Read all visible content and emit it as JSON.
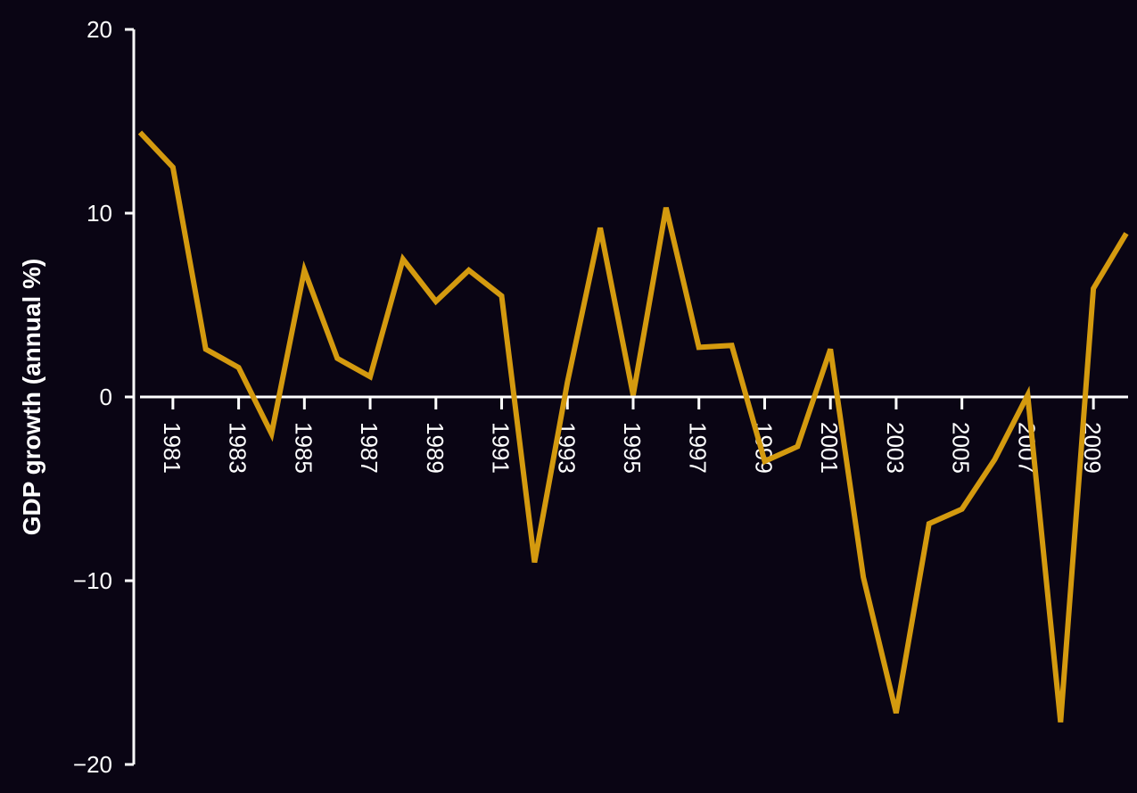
{
  "colors": {
    "background": "#0a0514",
    "axis": "#ffffff",
    "line": "#d49a0f",
    "text": "#ffffff"
  },
  "chart_data": {
    "type": "line",
    "title": "",
    "xlabel": "",
    "ylabel": "GDP growth (annual %)",
    "ylim": [
      -20,
      20
    ],
    "xlim": [
      1980,
      2010
    ],
    "yticks": [
      -20,
      -10,
      0,
      10,
      20
    ],
    "ytick_labels": [
      "−20",
      "−10",
      "0",
      "10",
      "20"
    ],
    "xticks": [
      1981,
      1983,
      1985,
      1987,
      1989,
      1991,
      1993,
      1995,
      1997,
      1999,
      2001,
      2003,
      2005,
      2007,
      2009
    ],
    "xtick_labels": [
      "1981",
      "1983",
      "1985",
      "1987",
      "1989",
      "1991",
      "1993",
      "1995",
      "1997",
      "1999",
      "2001",
      "2003",
      "2005",
      "2007",
      "2009"
    ],
    "x_axis_at_y": 0,
    "grid": false,
    "legend": "none",
    "series": [
      {
        "x": [
          1980,
          1981,
          1982,
          1983,
          1984,
          1985,
          1986,
          1987,
          1988,
          1989,
          1990,
          1991,
          1992,
          1993,
          1994,
          1995,
          1996,
          1997,
          1998,
          1999,
          2000,
          2001,
          2002,
          2003,
          2004,
          2005,
          2006,
          2007,
          2008,
          2009,
          2010
        ],
        "values": [
          14.4,
          12.5,
          2.6,
          1.6,
          -2.0,
          6.9,
          2.1,
          1.1,
          7.5,
          5.2,
          6.9,
          5.5,
          -9.0,
          0.8,
          9.2,
          0.1,
          10.3,
          2.7,
          2.8,
          -3.5,
          -2.7,
          2.6,
          -9.8,
          -17.2,
          -6.9,
          -6.1,
          -3.4,
          0.1,
          -17.7,
          5.9,
          8.9
        ]
      }
    ]
  }
}
